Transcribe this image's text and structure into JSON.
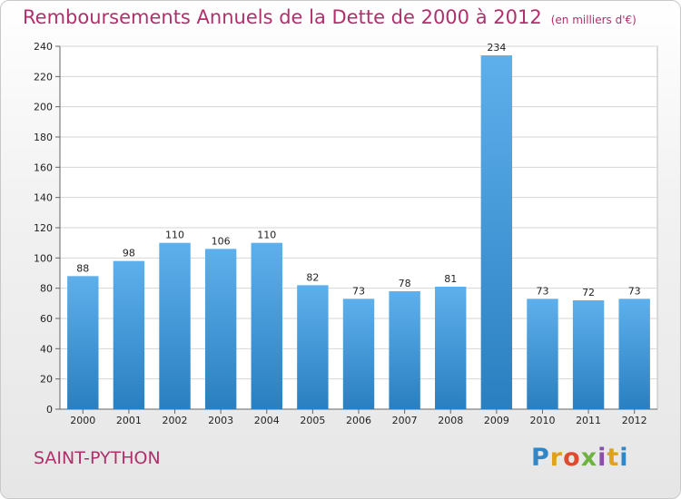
{
  "chart_data": {
    "type": "bar",
    "title": "Remboursements Annuels de la Dette de 2000 à 2012",
    "unit_note": "(en milliers d'€)",
    "categories": [
      "2000",
      "2001",
      "2002",
      "2003",
      "2004",
      "2005",
      "2006",
      "2007",
      "2008",
      "2009",
      "2010",
      "2011",
      "2012"
    ],
    "values": [
      88,
      98,
      110,
      106,
      110,
      82,
      73,
      78,
      81,
      234,
      73,
      72,
      73
    ],
    "value_labels": [
      "88",
      "98",
      "110",
      "106",
      "110",
      "82",
      "73",
      "78",
      "81",
      "234",
      "73",
      "72",
      "73"
    ],
    "ylim": [
      0,
      240
    ],
    "yticks": [
      "0",
      "20",
      "40",
      "60",
      "80",
      "100",
      "120",
      "140",
      "160",
      "180",
      "200",
      "220",
      "240"
    ],
    "grid": true,
    "bar_color": "#3f97da",
    "xlabel": "",
    "ylabel": ""
  },
  "footer": {
    "city": "SAINT-PYTHON",
    "brand_letters": [
      "P",
      "r",
      "o",
      "x",
      "i",
      "t",
      "i"
    ],
    "brand_colors": [
      "#2f86c8",
      "#e0a21a",
      "#e04a2e",
      "#6db33f",
      "#8a4fa8",
      "#e0a21a",
      "#2f86c8"
    ]
  }
}
